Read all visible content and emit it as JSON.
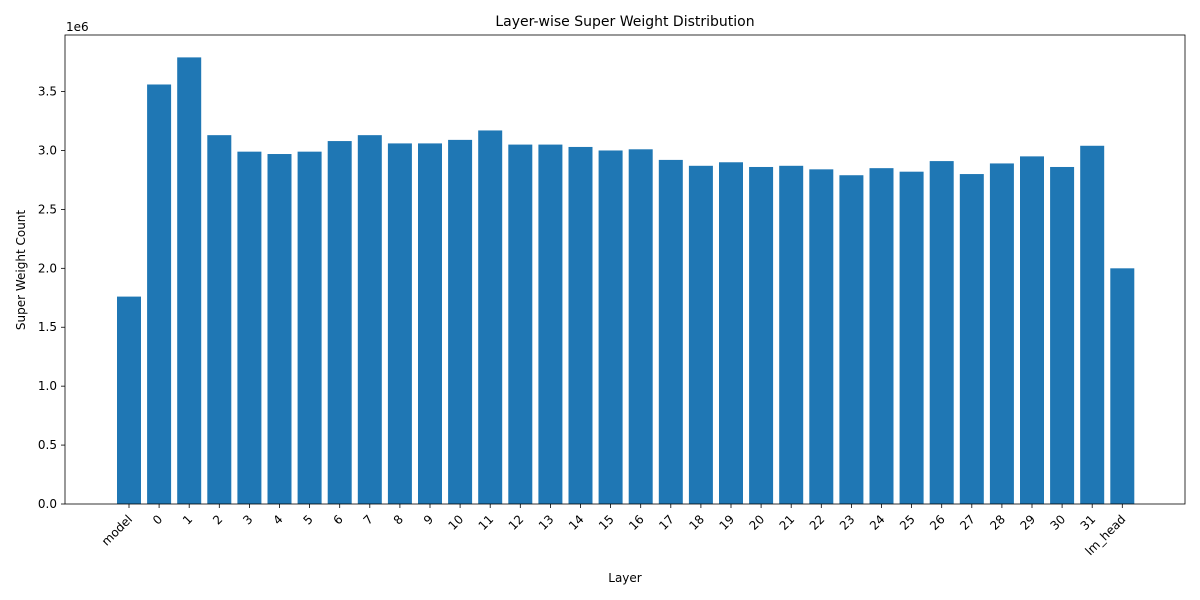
{
  "chart_data": {
    "type": "bar",
    "title": "Layer-wise Super Weight Distribution",
    "xlabel": "Layer",
    "ylabel": "Super Weight Count",
    "y_multiplier_label": "1e6",
    "categories": [
      "model",
      "0",
      "1",
      "2",
      "3",
      "4",
      "5",
      "6",
      "7",
      "8",
      "9",
      "10",
      "11",
      "12",
      "13",
      "14",
      "15",
      "16",
      "17",
      "18",
      "19",
      "20",
      "21",
      "22",
      "23",
      "24",
      "25",
      "26",
      "27",
      "28",
      "29",
      "30",
      "31",
      "lm_head"
    ],
    "values": [
      1760000,
      3560000,
      3790000,
      3130000,
      2990000,
      2970000,
      2990000,
      3080000,
      3130000,
      3060000,
      3060000,
      3090000,
      3170000,
      3050000,
      3050000,
      3030000,
      3000000,
      3010000,
      2920000,
      2870000,
      2900000,
      2860000,
      2870000,
      2840000,
      2790000,
      2850000,
      2820000,
      2910000,
      2800000,
      2890000,
      2950000,
      2860000,
      3040000,
      2000000
    ],
    "ylim": [
      0,
      3980000
    ],
    "yticks": [
      0,
      500000,
      1000000,
      1500000,
      2000000,
      2500000,
      3000000,
      3500000
    ],
    "ytick_labels": [
      "0.0",
      "0.5",
      "1.0",
      "1.5",
      "2.0",
      "2.5",
      "3.0",
      "3.5"
    ],
    "grid": false,
    "bar_color": "#1f77b4"
  }
}
